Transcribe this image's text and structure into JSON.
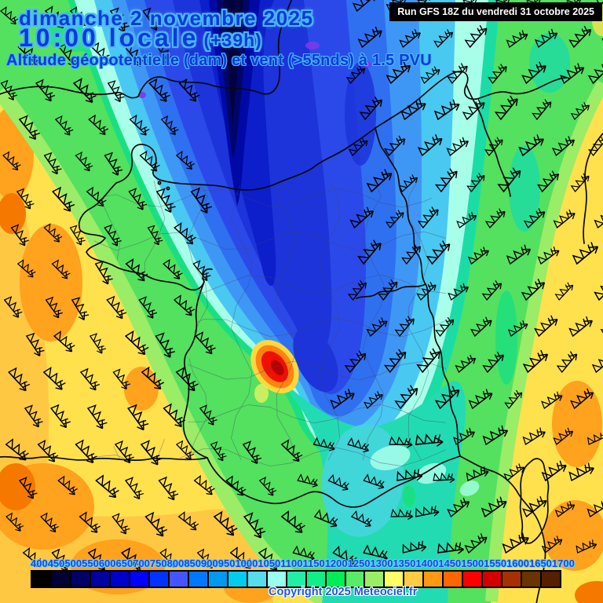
{
  "header": {
    "date_line": "dimanche 2 novembre 2025",
    "time_line": "10:00 locale",
    "offset_label": "(+39h)",
    "subtitle": "Altitude géopotentielle (dam) et vent (>55nds) à 1.5 PVU",
    "run_info": "Run GFS 18Z du vendredi 31 octobre 2025"
  },
  "footer": {
    "copyright": "Copyright 2025 Meteociel.fr"
  },
  "colorbar": {
    "unit": "dam",
    "labels": [
      "400",
      "450",
      "500",
      "550",
      "600",
      "650",
      "700",
      "750",
      "800",
      "850",
      "900",
      "950",
      "1000",
      "1050",
      "1100",
      "1150",
      "1200",
      "1250",
      "1300",
      "1350",
      "1400",
      "1450",
      "1500",
      "1550",
      "1600",
      "1650",
      "1700"
    ],
    "colors": [
      "#000000",
      "#000033",
      "#000066",
      "#0000A0",
      "#0000CC",
      "#0000FF",
      "#0033FF",
      "#4455FF",
      "#0077FF",
      "#0099F0",
      "#00CCEE",
      "#55DDEE",
      "#99FFEE",
      "#22EEAA",
      "#11EE88",
      "#00EE55",
      "#55EE66",
      "#99EE66",
      "#FFFF66",
      "#FFCC44",
      "#FF9911",
      "#FF6600",
      "#FF0000",
      "#D40000",
      "#A63000",
      "#6B3300",
      "#551F00"
    ]
  },
  "map": {
    "band_colors": {
      "base_yellow": "#FFE14E",
      "gold": "#FFC843",
      "orange": "#FFA21E",
      "deep_orange": "#F57900",
      "green": "#53E15F",
      "pale_green": "#9BEC67",
      "spring": "#1ADF82",
      "teal": "#1CDCA6",
      "pale_cyan": "#A8FFE9",
      "cyan": "#49C8F2",
      "light_blue": "#3F97F5",
      "blue": "#2E70F0",
      "royal": "#2B49E8",
      "deep_blue": "#1C34D9",
      "darker_blue": "#0D1ECB",
      "navy": "#0009A6",
      "dark_navy": "#000668",
      "core": "#02023E",
      "corridor_teal": "#23DBB3",
      "corridor_cyan": "#45D5DC",
      "spot_yellow": "#FFD83C",
      "spot_orange": "#FF8212",
      "spot_red": "#F01000",
      "spot_dark_red": "#B80000",
      "purple": "#7A3BE8",
      "border": "#0a0a0a",
      "dept_line": "#44446a",
      "barb": "#000000"
    },
    "wind_barbs": {
      "symbol": "pennant-barb",
      "grid_step_x": 44,
      "grid_step_y": 46
    }
  }
}
